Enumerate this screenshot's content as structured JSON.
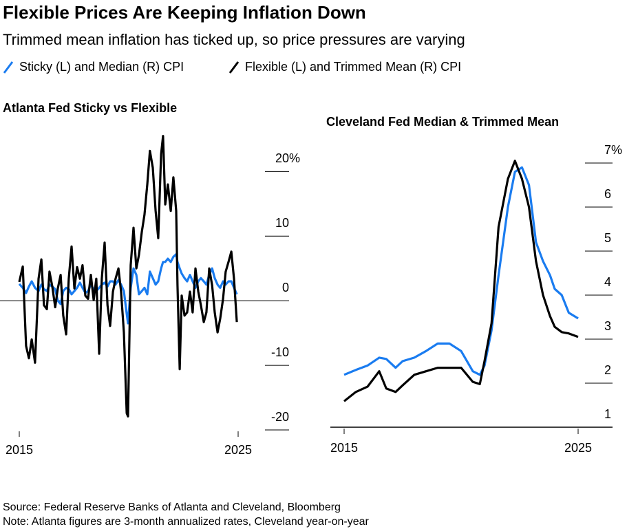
{
  "title": "Flexible Prices Are Keeping Inflation Down",
  "subtitle": "Trimmed mean inflation has ticked up, so price pressures are varying",
  "legend": [
    {
      "label": "Sticky (L) and Median (R) CPI",
      "color": "#1a7cf0"
    },
    {
      "label": "Flexible (L) and Trimmed Mean (R) CPI",
      "color": "#000000"
    }
  ],
  "chart_data": [
    {
      "type": "line",
      "title": "Atlanta Fed Sticky vs Flexible",
      "x": [
        2015.0,
        2015.16,
        2015.31,
        2015.44,
        2015.57,
        2015.72,
        2015.88,
        2016.01,
        2016.13,
        2016.26,
        2016.38,
        2016.51,
        2016.64,
        2016.76,
        2016.89,
        2017.01,
        2017.14,
        2017.26,
        2017.39,
        2017.52,
        2017.64,
        2017.77,
        2017.89,
        2018.02,
        2018.14,
        2018.27,
        2018.4,
        2018.52,
        2018.65,
        2018.77,
        2018.9,
        2019.03,
        2019.15,
        2019.28,
        2019.4,
        2019.53,
        2019.65,
        2019.78,
        2019.91,
        2019.97,
        2020.09,
        2020.22,
        2020.35,
        2020.47,
        2020.6,
        2020.72,
        2020.85,
        2020.97,
        2021.1,
        2021.23,
        2021.35,
        2021.48,
        2021.57,
        2021.67,
        2021.79,
        2021.92,
        2022.04,
        2022.17,
        2022.23,
        2022.33,
        2022.42,
        2022.55,
        2022.67,
        2022.8,
        2022.92,
        2023.05,
        2023.18,
        2023.3,
        2023.43,
        2023.55,
        2023.68,
        2023.81,
        2023.93,
        2024.06,
        2024.18,
        2024.31,
        2024.43,
        2024.56,
        2024.69,
        2024.81,
        2024.94
      ],
      "series": [
        {
          "color": "#1a7cf0",
          "values": [
            2.6,
            2.0,
            1.2,
            2.2,
            3.0,
            2.0,
            1.5,
            2.5,
            1.8,
            1.5,
            2.5,
            2.2,
            1.8,
            0.0,
            -0.5,
            1.5,
            2.0,
            1.8,
            1.0,
            1.5,
            2.0,
            2.8,
            2.0,
            1.2,
            1.5,
            2.5,
            1.8,
            1.5,
            2.0,
            2.5,
            2.8,
            2.2,
            3.0,
            3.0,
            2.5,
            3.2,
            2.5,
            1.5,
            -2.0,
            -3.5,
            2.0,
            5.0,
            4.0,
            1.0,
            1.5,
            2.0,
            1.0,
            4.5,
            3.5,
            2.5,
            3.0,
            5.0,
            6.0,
            6.0,
            6.5,
            6.0,
            6.8,
            7.2,
            6.0,
            5.0,
            4.2,
            3.5,
            3.0,
            4.0,
            3.0,
            2.0,
            3.0,
            3.5,
            3.0,
            2.5,
            4.0,
            5.0,
            3.5,
            2.5,
            2.0,
            3.0,
            2.5,
            3.0,
            3.0,
            2.0,
            1.0
          ]
        },
        {
          "color": "#000000",
          "values": [
            2.9,
            5.3,
            -7.0,
            -8.9,
            -6.0,
            -9.6,
            3.4,
            6.4,
            -0.7,
            -1.3,
            4.5,
            2.2,
            -1.0,
            1.9,
            4.0,
            -2.3,
            -5.2,
            3.4,
            8.4,
            1.9,
            5.2,
            3.4,
            5.5,
            0.8,
            0.3,
            4.0,
            0.1,
            3.4,
            -8.2,
            3.4,
            9.0,
            -0.7,
            -3.9,
            1.4,
            3.4,
            5.0,
            1.4,
            -4.9,
            -17.4,
            -17.9,
            5.5,
            11.3,
            5.0,
            7.1,
            10.7,
            13.3,
            18.0,
            23.2,
            20.6,
            13.9,
            9.7,
            22.7,
            25.5,
            14.9,
            18.0,
            13.9,
            19.1,
            13.9,
            2.4,
            -10.6,
            0.8,
            -2.3,
            -1.8,
            1.4,
            -1.8,
            5.0,
            1.4,
            -0.7,
            -3.3,
            -1.8,
            5.0,
            2.4,
            -1.8,
            -4.9,
            -2.8,
            0.3,
            4.5,
            6.0,
            7.6,
            3.4,
            -3.3
          ]
        }
      ],
      "xlim": [
        2015,
        2025
      ],
      "xticks": [
        2015,
        2025
      ],
      "ylim": [
        -20,
        26
      ],
      "yticks": [
        -20,
        -10,
        0,
        10,
        {
          "value": 20,
          "label": "20%"
        }
      ]
    },
    {
      "type": "line",
      "title": "Cleveland Fed Median & Trimmed Mean",
      "x": [
        2015,
        2015.5,
        2016,
        2016.5,
        2016.8,
        2017.2,
        2017.5,
        2018,
        2018.5,
        2019,
        2019.5,
        2020,
        2020.5,
        2020.8,
        2021,
        2021.3,
        2021.6,
        2022,
        2022.3,
        2022.6,
        2022.9,
        2023.2,
        2023.5,
        2023.8,
        2024,
        2024.3,
        2024.6,
        2025
      ],
      "series": [
        {
          "color": "#1a7cf0",
          "values": [
            2.19,
            2.3,
            2.4,
            2.58,
            2.55,
            2.35,
            2.5,
            2.58,
            2.73,
            2.9,
            2.9,
            2.73,
            2.27,
            2.19,
            2.4,
            3.2,
            4.45,
            6.0,
            6.8,
            6.9,
            6.5,
            5.2,
            4.77,
            4.45,
            4.14,
            4.0,
            3.6,
            3.47
          ]
        },
        {
          "color": "#000000",
          "values": [
            1.59,
            1.8,
            1.92,
            2.27,
            1.88,
            1.8,
            1.95,
            2.19,
            2.27,
            2.35,
            2.35,
            2.35,
            2.03,
            1.98,
            2.5,
            3.36,
            5.55,
            6.64,
            7.05,
            6.64,
            6.0,
            4.77,
            4.0,
            3.52,
            3.28,
            3.16,
            3.13,
            3.05
          ]
        }
      ],
      "xlim": [
        2015,
        2025
      ],
      "xticks": [
        2015,
        2025
      ],
      "ylim": [
        1,
        7.5
      ],
      "yticks": [
        1,
        2,
        3,
        4,
        5,
        6,
        {
          "value": 7,
          "label": "7%"
        }
      ]
    }
  ],
  "source": "Source: Federal Reserve Banks of Atlanta and Cleveland, Bloomberg",
  "note": "Note: Atlanta figures are 3-month annualized rates, Cleveland year-on-year"
}
